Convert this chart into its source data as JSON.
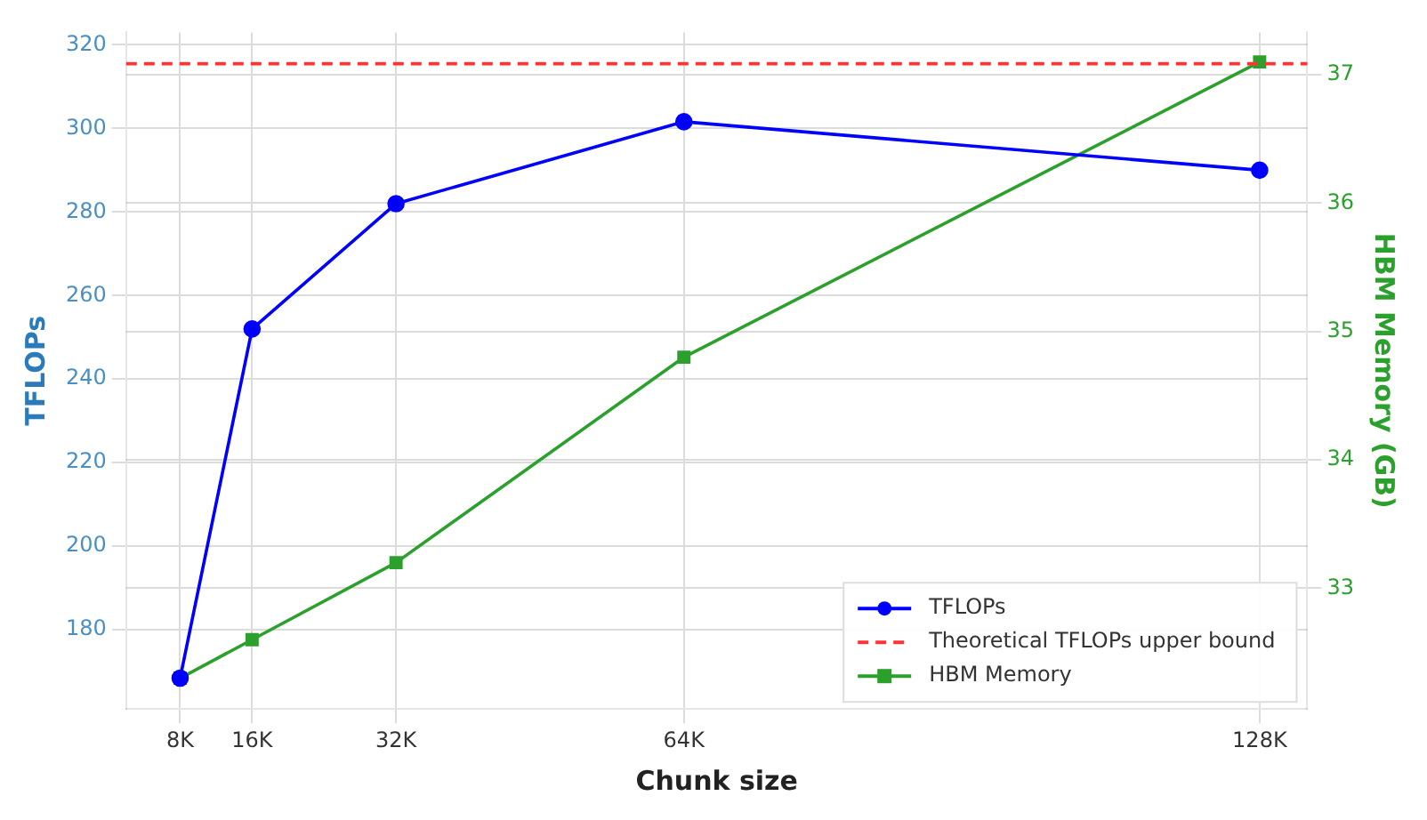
{
  "chart_data": {
    "type": "line",
    "xlabel": "Chunk size",
    "ylabel": "TFLOPs",
    "y2label": "HBM Memory (GB)",
    "x": [
      8,
      16,
      32,
      64,
      128
    ],
    "series": [
      {
        "name": "TFLOPs",
        "color": "#0000ff",
        "values": [
          168.4,
          252,
          282,
          301.6,
          290
        ],
        "marker": "circle"
      },
      {
        "name": "HBM Memory",
        "color": "#2ca02c",
        "values": [
          32.3,
          32.6,
          33.2,
          34.8,
          37.1
        ],
        "axis": "y2",
        "marker": "square"
      }
    ],
    "ref_lines": [
      {
        "axis": "y",
        "value": 315.5,
        "label": "Theoretical TFLOPs upper bound",
        "color": "#ff3333",
        "line_style": "dashed"
      }
    ],
    "xlim": [
      2,
      133.3
    ],
    "xticks": [
      {
        "value": 8,
        "label": "8K"
      },
      {
        "value": 16,
        "label": "16K"
      },
      {
        "value": 32,
        "label": "32K"
      },
      {
        "value": 64,
        "label": "64K"
      },
      {
        "value": 128,
        "label": "128K"
      }
    ],
    "ylim": [
      161,
      323
    ],
    "yticks": [
      180,
      200,
      220,
      240,
      260,
      280,
      300,
      320
    ],
    "y2lim": [
      32.06,
      37.33
    ],
    "y2ticks": [
      33,
      34,
      35,
      36,
      37
    ],
    "grid": true,
    "legend": "bottom right",
    "line_style": "solid"
  }
}
